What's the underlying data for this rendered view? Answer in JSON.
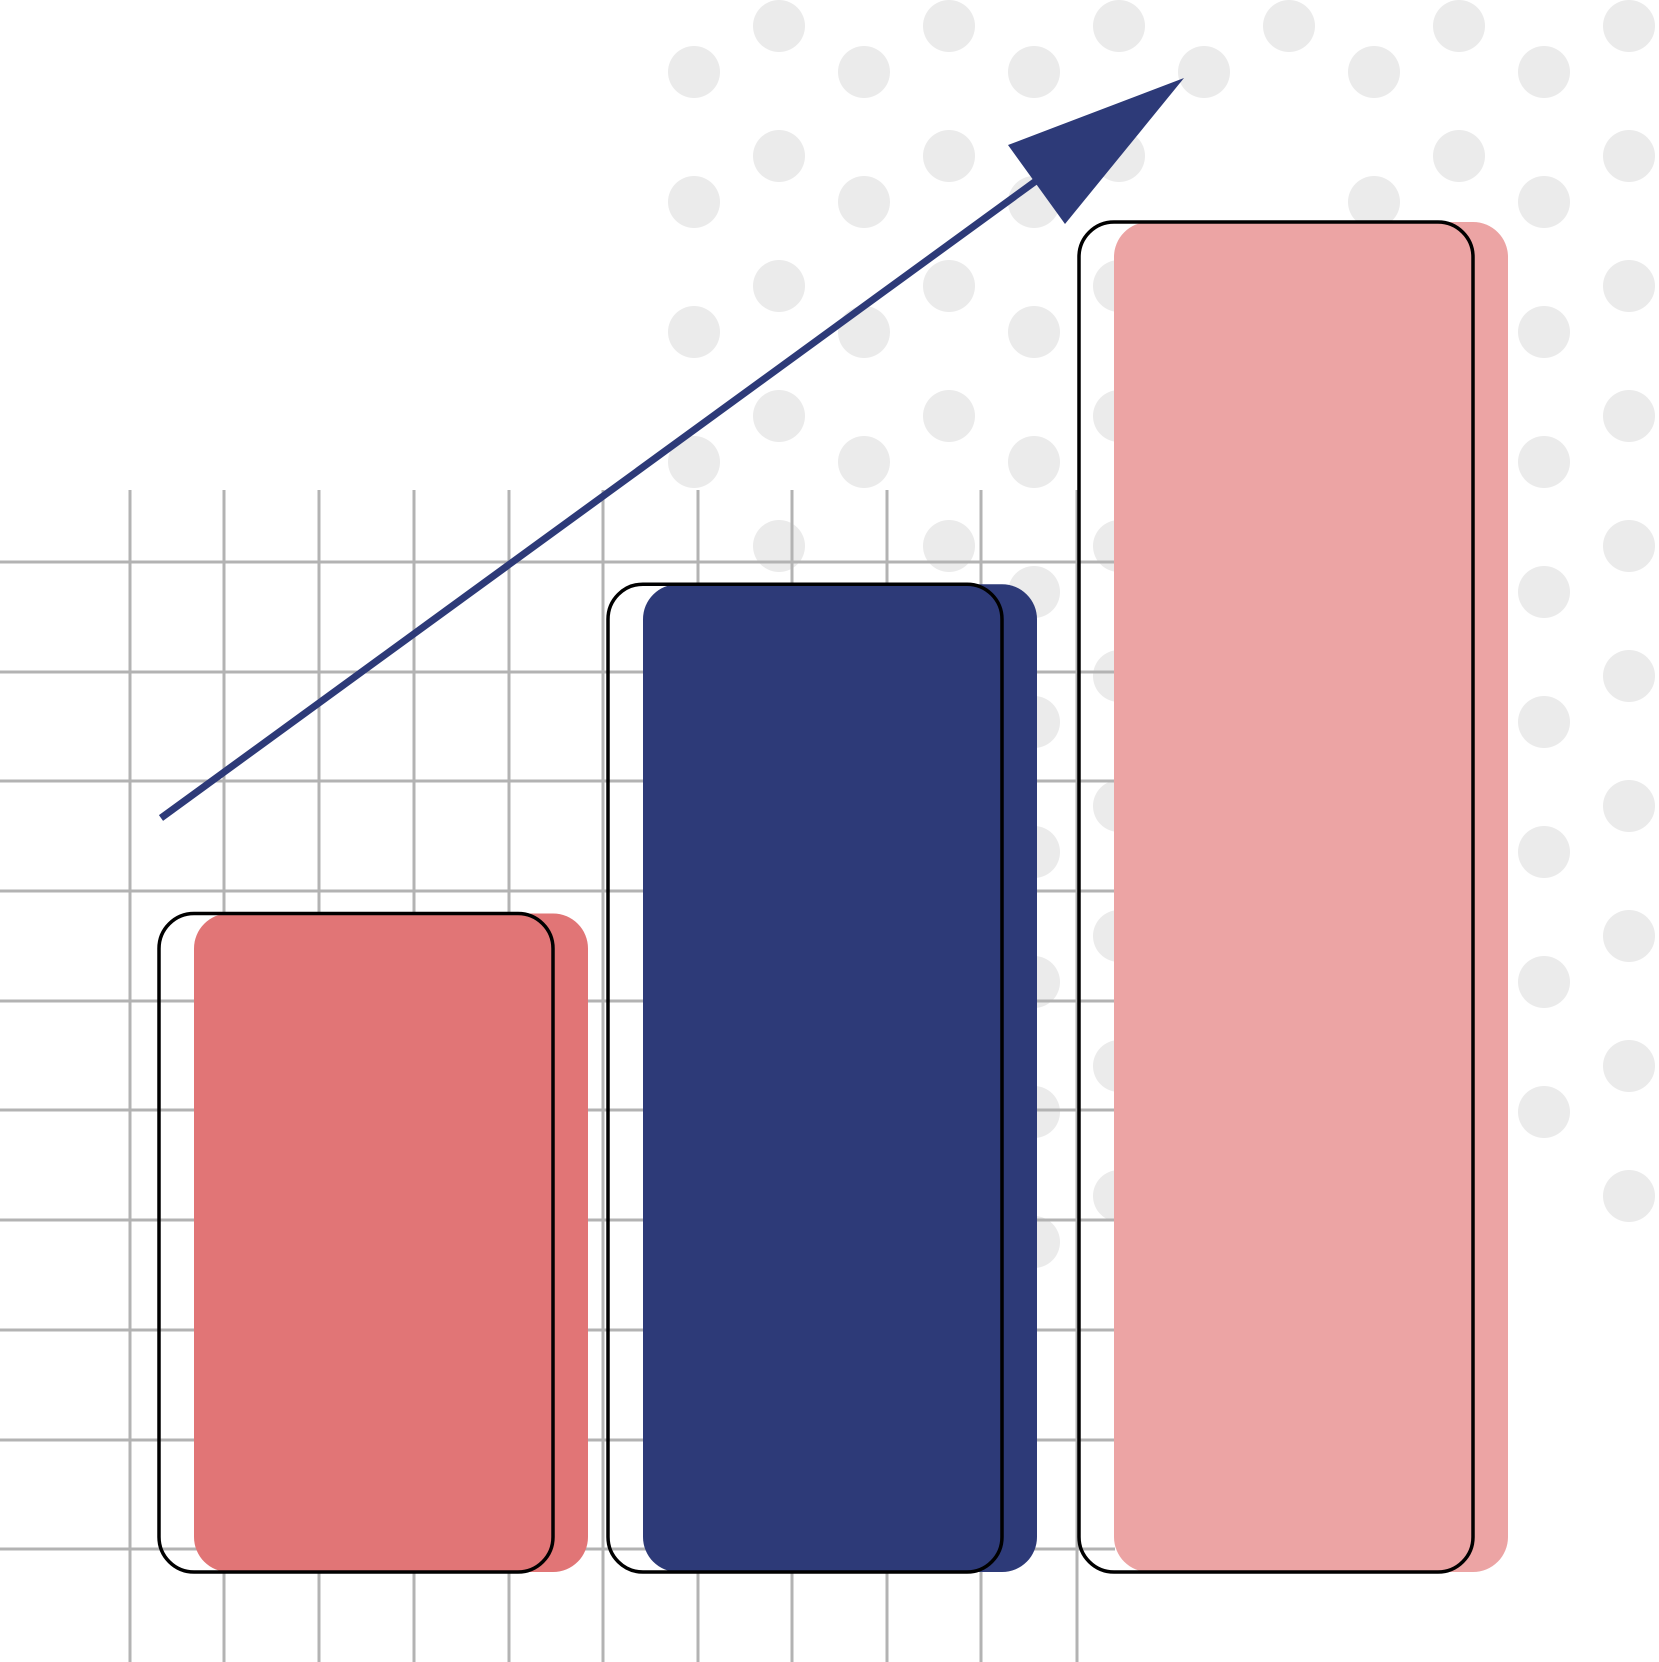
{
  "chart_data": {
    "type": "bar",
    "title": "",
    "xlabel": "",
    "ylabel": "",
    "categories": [
      "",
      "",
      ""
    ],
    "values": [
      6,
      9,
      12.3
    ],
    "ylim": [
      0,
      12.3
    ],
    "grid": true,
    "legend": "none",
    "bar_colors": [
      "#E17576",
      "#2D3A78",
      "#ECA4A4"
    ],
    "trend_arrow": {
      "direction": "up",
      "color": "#2D3A78"
    },
    "colors": {
      "grid": "#B3B3B3",
      "dots": "#EBEBEB",
      "outline": "#000000",
      "background": "#FFFFFF"
    }
  }
}
